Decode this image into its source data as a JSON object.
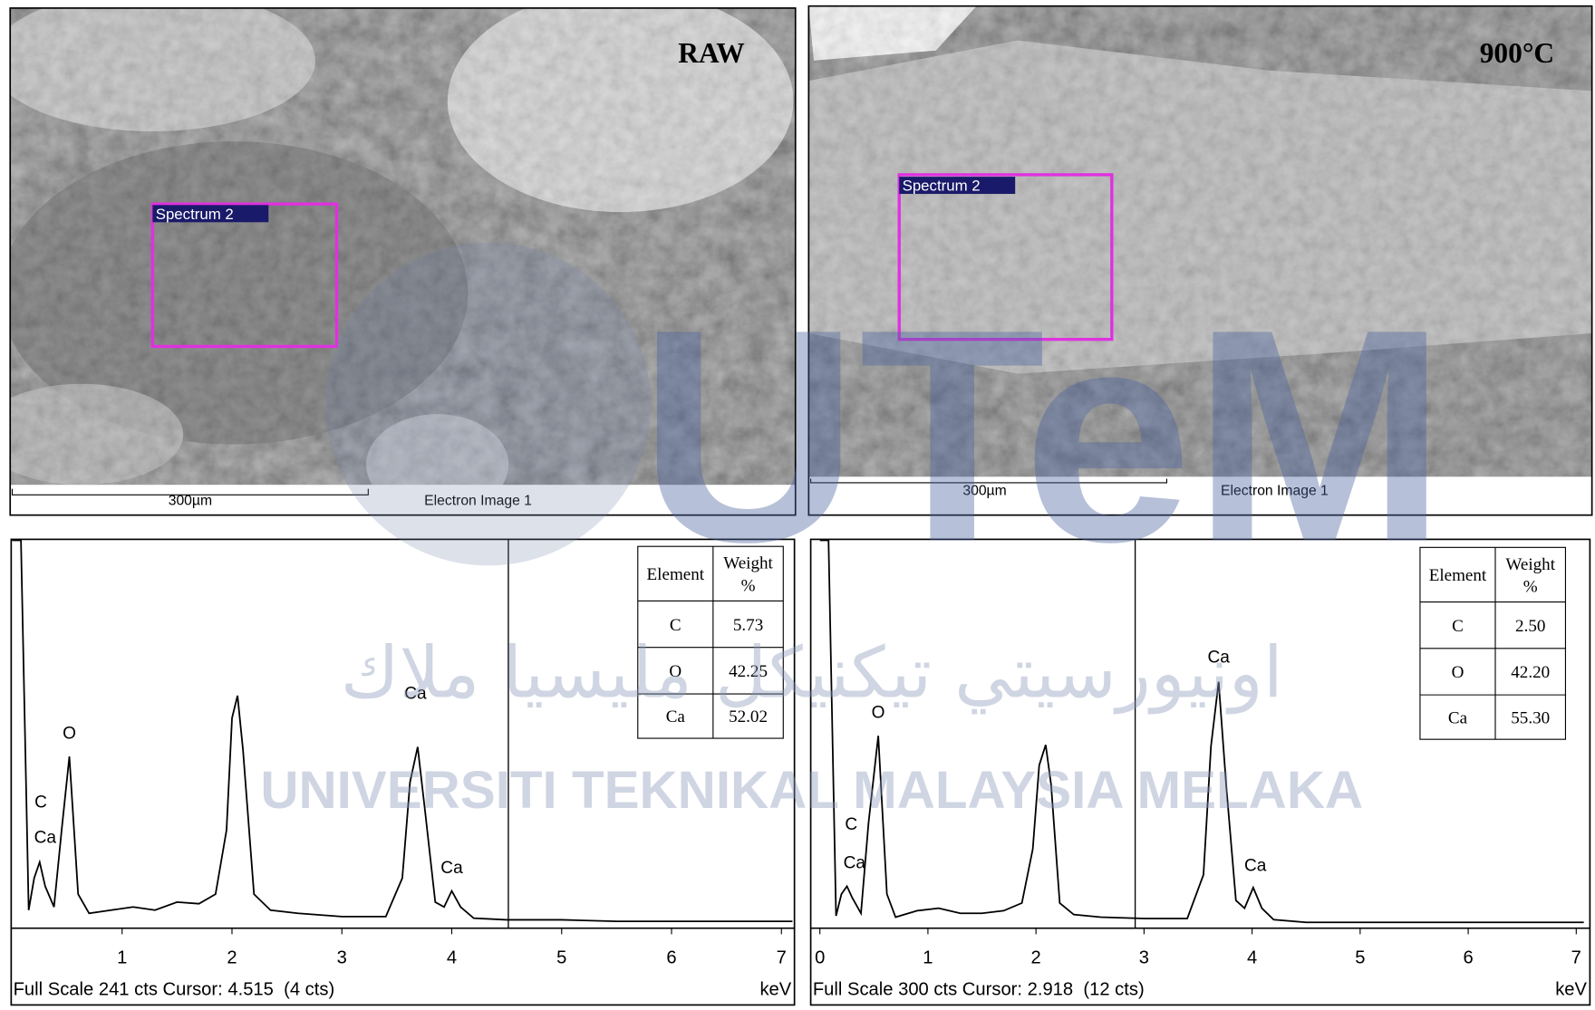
{
  "images": [
    {
      "label": "RAW",
      "spectrum_label": "Spectrum 2",
      "scale_bar": "300µm",
      "caption": "Electron Image 1"
    },
    {
      "label": "900°C",
      "spectrum_label": "Spectrum 2",
      "scale_bar": "300µm",
      "caption": "Electron Image 1"
    }
  ],
  "chart_data": [
    {
      "type": "line",
      "color": "#000000",
      "x": [
        0,
        0.08,
        0.15,
        0.2,
        0.25,
        0.3,
        0.38,
        0.45,
        0.52,
        0.6,
        0.7,
        0.9,
        1.1,
        1.3,
        1.5,
        1.7,
        1.85,
        1.95,
        2.0,
        2.05,
        2.1,
        2.2,
        2.35,
        2.6,
        3.0,
        3.4,
        3.55,
        3.62,
        3.69,
        3.76,
        3.85,
        3.93,
        4.0,
        4.08,
        4.2,
        4.5,
        5.0,
        5.5,
        6.0,
        6.5,
        7.1
      ],
      "values": [
        241,
        241,
        10,
        30,
        40,
        25,
        12,
        60,
        106,
        20,
        8,
        10,
        12,
        10,
        15,
        14,
        20,
        60,
        130,
        144,
        110,
        20,
        10,
        8,
        6,
        6,
        30,
        90,
        112,
        70,
        15,
        12,
        22,
        12,
        5,
        4,
        4,
        3,
        3,
        3,
        3
      ],
      "xlim": [
        0,
        7.1
      ],
      "xticks": [
        1,
        2,
        3,
        4,
        5,
        6,
        7
      ],
      "ylim": [
        0,
        241
      ],
      "x_unit": "keV",
      "footer": "Full Scale 241 cts Cursor: 4.515  (4 cts)",
      "cursor": 4.515,
      "annotations": [
        {
          "text": "C",
          "x": 0.26,
          "y": 74
        },
        {
          "text": "Ca",
          "x": 0.3,
          "y": 52
        },
        {
          "text": "O",
          "x": 0.52,
          "y": 117
        },
        {
          "text": "Ca",
          "x": 3.67,
          "y": 142
        },
        {
          "text": "Ca",
          "x": 4.0,
          "y": 33
        }
      ]
    },
    {
      "type": "line",
      "color": "#000000",
      "x": [
        0,
        0.08,
        0.15,
        0.2,
        0.25,
        0.3,
        0.38,
        0.45,
        0.54,
        0.62,
        0.7,
        0.9,
        1.1,
        1.3,
        1.5,
        1.7,
        1.87,
        1.97,
        2.03,
        2.09,
        2.14,
        2.22,
        2.35,
        2.6,
        3.0,
        3.4,
        3.55,
        3.62,
        3.69,
        3.76,
        3.85,
        3.93,
        4.01,
        4.09,
        4.2,
        4.5,
        5.0,
        5.5,
        6.0,
        6.5,
        7.07
      ],
      "values": [
        300,
        300,
        8,
        25,
        31,
        22,
        10,
        80,
        148,
        25,
        7,
        12,
        14,
        10,
        10,
        12,
        18,
        60,
        125,
        141,
        110,
        18,
        9,
        7,
        6,
        6,
        40,
        140,
        190,
        110,
        20,
        14,
        30,
        14,
        5,
        3,
        3,
        3,
        3,
        3,
        3
      ],
      "xlim": [
        0,
        7.07
      ],
      "xticks": [
        0,
        1,
        2,
        3,
        4,
        5,
        6,
        7
      ],
      "ylim": [
        0,
        300
      ],
      "x_unit": "keV",
      "footer": "Full Scale 300 cts Cursor: 2.918  (12 cts)",
      "cursor": 2.918,
      "annotations": [
        {
          "text": "C",
          "x": 0.29,
          "y": 75
        },
        {
          "text": "Ca",
          "x": 0.32,
          "y": 45
        },
        {
          "text": "O",
          "x": 0.54,
          "y": 162
        },
        {
          "text": "Ca",
          "x": 3.69,
          "y": 205
        },
        {
          "text": "Ca",
          "x": 4.03,
          "y": 43
        }
      ]
    }
  ],
  "tables": [
    {
      "header": [
        "Element",
        "Weight %"
      ],
      "rows": [
        [
          "C",
          "5.73"
        ],
        [
          "O",
          "42.25"
        ],
        [
          "Ca",
          "52.02"
        ]
      ]
    },
    {
      "header": [
        "Element",
        "Weight %"
      ],
      "rows": [
        [
          "C",
          "2.50"
        ],
        [
          "O",
          "42.20"
        ],
        [
          "Ca",
          "55.30"
        ]
      ]
    }
  ],
  "watermark": {
    "logo": "UTeM",
    "name": "UNIVERSITI TEKNIKAL MALAYSIA MELAKA",
    "arabic": "اونيورسيتي تيكنيكل مليسيا ملاك"
  }
}
